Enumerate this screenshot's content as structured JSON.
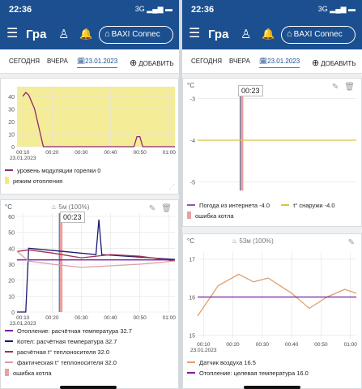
{
  "left": {
    "status": {
      "time": "22:36",
      "network": "3G"
    },
    "app_title": "Гра",
    "device": "BAXI Connec",
    "tabs": {
      "today": "СЕГОДНЯ",
      "yesterday": "ВЧЕРА",
      "date": "23.01.2023",
      "add": "ДОБАВИТЬ"
    },
    "card1": {
      "legend": [
        {
          "label": "уровень модуляции горелки 0",
          "color": "#8b2b6e",
          "kind": "line"
        },
        {
          "label": "режим отопления",
          "color": "#f3e98c",
          "kind": "box"
        }
      ]
    },
    "card2": {
      "unit": "°C",
      "flame": "  5м (100%)",
      "tooltip": "00:23",
      "legend": [
        {
          "label": "Отопление: расчётная температура 32.7",
          "color": "#7a1aa0"
        },
        {
          "label": "Котел: расчётная температура 32.7",
          "color": "#1a1a6e"
        },
        {
          "label": "расчётная t° теплоносителя 32.0",
          "color": "#a03050"
        },
        {
          "label": "фактическая t° теплоносителя 32.0",
          "color": "#d9a0a6"
        },
        {
          "label": "ошибка котла",
          "color": "#e8a0a0"
        }
      ]
    }
  },
  "right": {
    "status": {
      "time": "22:36",
      "network": "3G"
    },
    "app_title": "Гра",
    "device": "BAXI Connec",
    "tabs": {
      "today": "СЕГОДНЯ",
      "yesterday": "ВЧЕРА",
      "date": "23.01.2023",
      "add": "ДОБАВИТЬ"
    },
    "card1": {
      "unit": "°C",
      "tooltip": "00:23",
      "legend_row1": [
        {
          "label": "Погода из интернета -4.0",
          "color": "#8a5ab0"
        },
        {
          "label": "t° снаружи -4.0",
          "color": "#e0c040"
        }
      ],
      "legend_row2": [
        {
          "label": "ошибка котла",
          "color": "#e8a0a0"
        }
      ]
    },
    "card2": {
      "unit": "°C",
      "flame": "53м (100%)",
      "legend": [
        {
          "label": "Датчик воздуха 16.5",
          "color": "#e0a070"
        },
        {
          "label": "Отопление: целевая температура 16.0",
          "color": "#7a1aa0"
        }
      ]
    }
  },
  "chart_data": [
    {
      "type": "line",
      "name": "left-card1",
      "y_ticks": [
        "40",
        "30",
        "20",
        "10",
        "0"
      ],
      "x_ticks": [
        "00:10",
        "00:20",
        "00:30",
        "00:40",
        "00:50",
        "01:00"
      ],
      "x_date": "23.01.2023",
      "ylim": [
        0,
        45
      ],
      "series": [
        {
          "name": "уровень модуляции горелки",
          "x": [
            "00:10",
            "00:11",
            "00:12",
            "00:14",
            "00:17",
            "00:30",
            "00:40",
            "00:48",
            "00:49",
            "00:50",
            "00:51",
            "01:02"
          ],
          "values": [
            40,
            43,
            41,
            30,
            0,
            0,
            0,
            0,
            8,
            8,
            0,
            0
          ]
        }
      ],
      "background": "режим отопления"
    },
    {
      "type": "line",
      "name": "left-card2",
      "y_ticks": [
        "60",
        "50",
        "40",
        "30",
        "20",
        "10",
        "0"
      ],
      "x_ticks": [
        "00:10",
        "00:20",
        "00:30",
        "00:40",
        "00:50",
        "01:00"
      ],
      "x_date": "23.01.2023",
      "ylim": [
        0,
        60
      ],
      "series": [
        {
          "name": "Отопление: расчётная температура",
          "x": [
            "00:08",
            "01:02"
          ],
          "values": [
            32.7,
            32.7
          ]
        },
        {
          "name": "Котел: расчётная температура",
          "x": [
            "00:08",
            "00:11",
            "00:12",
            "00:24",
            "00:35",
            "00:36",
            "00:37",
            "01:02"
          ],
          "values": [
            0,
            0,
            40,
            38,
            36,
            58,
            36,
            33
          ]
        },
        {
          "name": "расчётная t° теплоносителя",
          "x": [
            "00:08",
            "00:12",
            "00:20",
            "00:30",
            "00:40",
            "00:50",
            "01:02"
          ],
          "values": [
            38,
            39,
            37,
            34,
            36,
            35,
            32
          ]
        },
        {
          "name": "фактическая t° теплоносителя",
          "x": [
            "00:08",
            "00:12",
            "00:20",
            "00:30",
            "00:40",
            "00:50",
            "01:02"
          ],
          "values": [
            38,
            32,
            30,
            28,
            29,
            30,
            32
          ]
        }
      ]
    },
    {
      "type": "line",
      "name": "right-card1",
      "y_ticks": [
        "-3",
        "-4",
        "-5"
      ],
      "ylim": [
        -5.2,
        -2.8
      ],
      "series": [
        {
          "name": "t° снаружи",
          "values": [
            -4.0,
            -4.0
          ]
        }
      ]
    },
    {
      "type": "line",
      "name": "right-card2",
      "y_ticks": [
        "17",
        "16",
        "15"
      ],
      "x_ticks": [
        "00:10",
        "00:20",
        "00:30",
        "00:40",
        "00:50",
        "01:00"
      ],
      "x_date": "23.01.2023",
      "ylim": [
        14.9,
        17.1
      ],
      "series": [
        {
          "name": "Датчик воздуха",
          "x": [
            "00:08",
            "00:15",
            "00:22",
            "00:27",
            "00:32",
            "00:40",
            "00:46",
            "00:52",
            "00:58",
            "01:02"
          ],
          "values": [
            15.5,
            16.3,
            16.6,
            16.4,
            16.5,
            16.1,
            15.7,
            16.0,
            16.2,
            16.1
          ]
        },
        {
          "name": "Отопление: целевая температура",
          "x": [
            "00:08",
            "01:02"
          ],
          "values": [
            16.0,
            16.0
          ]
        }
      ]
    }
  ]
}
